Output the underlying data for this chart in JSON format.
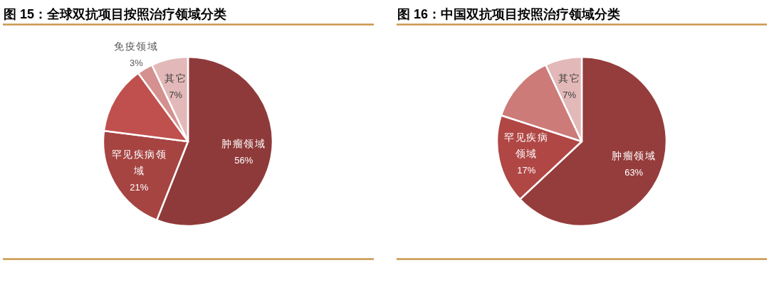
{
  "chart_data": [
    {
      "type": "pie",
      "title": "图 15：全球双抗项目按照治疗领域分类",
      "categories": [
        "肿瘤领域",
        "罕见疾病领域",
        null,
        "免疫领域",
        "其它"
      ],
      "values": [
        56,
        21,
        13,
        3,
        7
      ],
      "colors": [
        "#8f3a3a",
        "#a64442",
        "#c0504d",
        "#d4918f",
        "#e2b9b8"
      ],
      "value_labels": [
        "56%",
        "21%",
        null,
        "3%",
        "7%"
      ]
    },
    {
      "type": "pie",
      "title": "图 16：中国双抗项目按照治疗领域分类",
      "categories": [
        "肿瘤领域",
        "罕见疾病领域",
        null,
        "其它"
      ],
      "values": [
        63,
        17,
        13,
        7
      ],
      "colors": [
        "#953d3c",
        "#b04745",
        "#cc7b79",
        "#e2b9b8"
      ],
      "value_labels": [
        "63%",
        "17%",
        null,
        "7%"
      ]
    }
  ]
}
